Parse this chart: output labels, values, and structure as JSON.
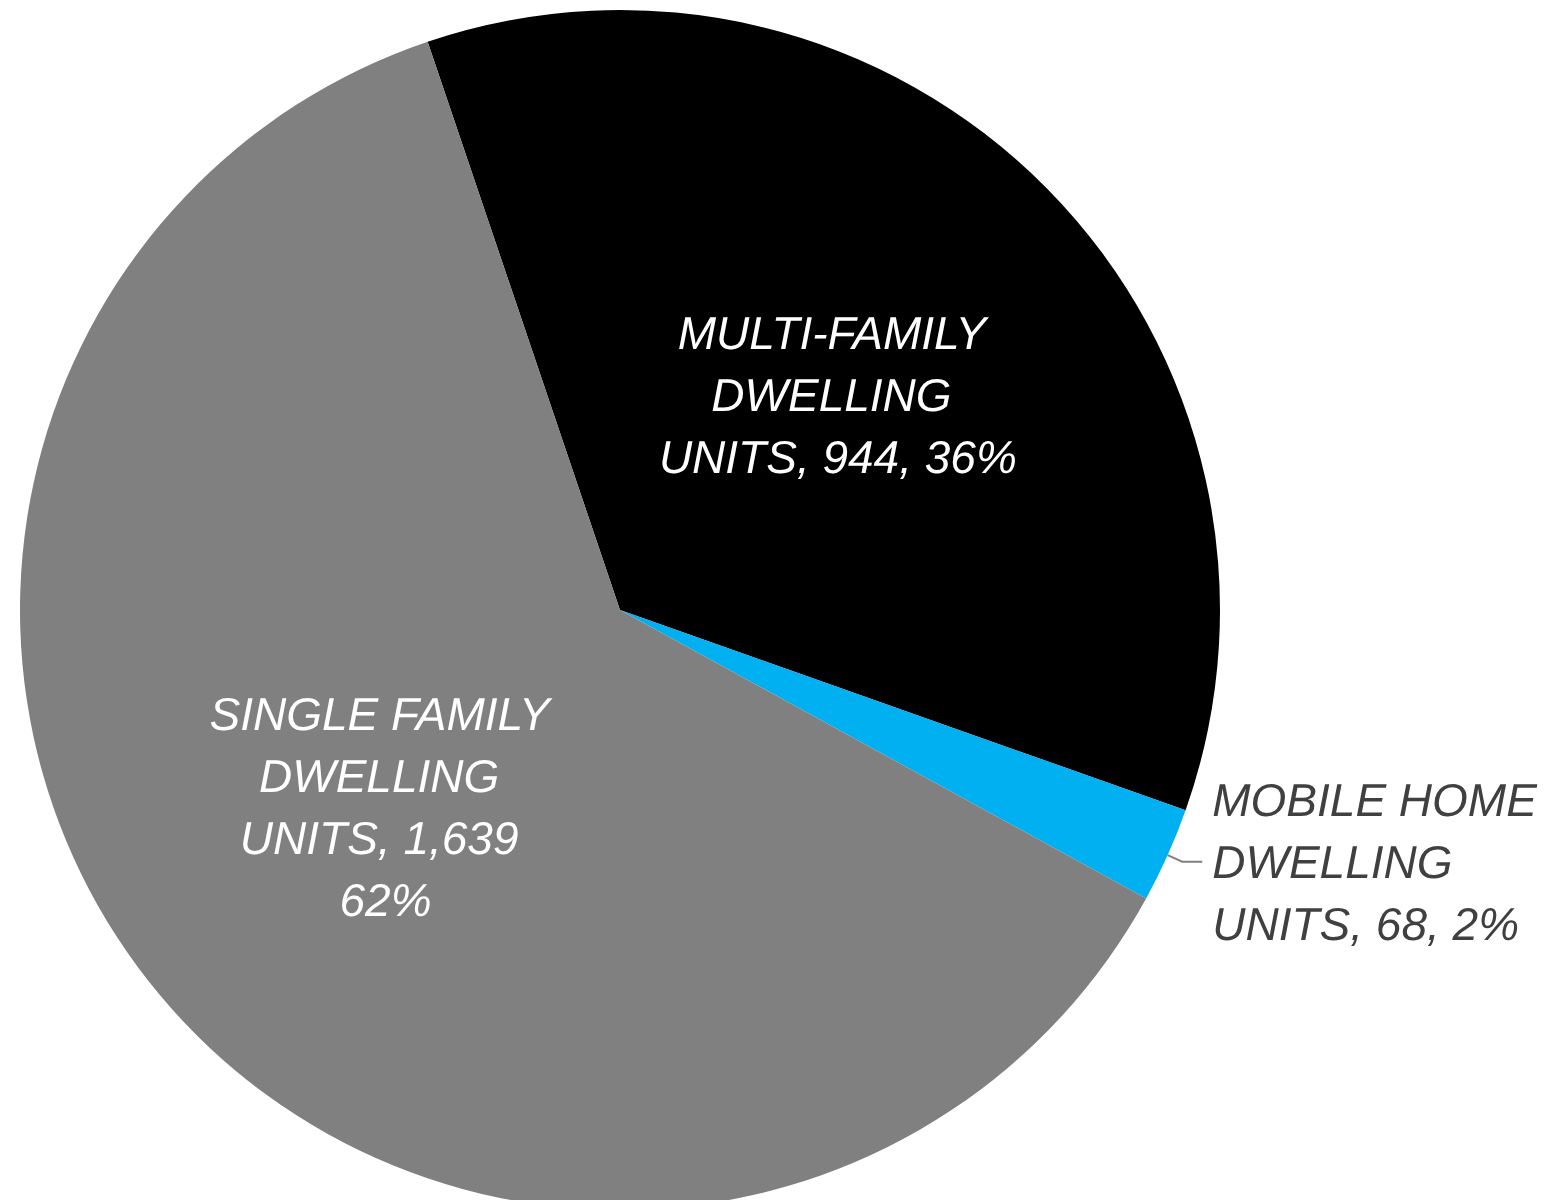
{
  "chart_data": {
    "type": "pie",
    "categories": [
      "MULTI-FAMILY DWELLING UNITS",
      "MOBILE HOME DWELLING UNITS",
      "SINGLE FAMILY DWELLING UNITS"
    ],
    "values": [
      944,
      68,
      1639
    ],
    "value_labels": [
      "944, 36%",
      "68, 2%",
      "1,639 62%"
    ],
    "colors": [
      "#000000",
      "#00b0f0",
      "#808080"
    ],
    "legend": false
  }
}
